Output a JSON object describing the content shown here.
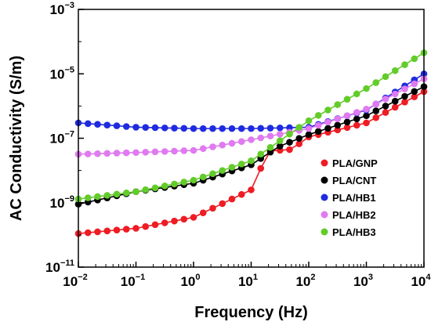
{
  "chart_data": {
    "type": "line",
    "xlabel": "Frequency (Hz)",
    "ylabel": "AC Conductivity (S/m)",
    "xscale": "log",
    "yscale": "log",
    "xlim": [
      0.01,
      10000
    ],
    "ylim": [
      1e-11,
      0.001
    ],
    "grid": false,
    "legend": "right",
    "x_ticks": [
      {
        "value": 0.01,
        "base": "10",
        "exp": "−2"
      },
      {
        "value": 0.1,
        "base": "10",
        "exp": "−1"
      },
      {
        "value": 1,
        "base": "10",
        "exp": "0"
      },
      {
        "value": 10,
        "base": "10",
        "exp": "1"
      },
      {
        "value": 100,
        "base": "10",
        "exp": "2"
      },
      {
        "value": 1000,
        "base": "10",
        "exp": "3"
      },
      {
        "value": 10000,
        "base": "10",
        "exp": "4"
      }
    ],
    "y_ticks": [
      {
        "value": 1e-11,
        "base": "10",
        "exp": "−11"
      },
      {
        "value": 1e-09,
        "base": "10",
        "exp": "−9"
      },
      {
        "value": 1e-07,
        "base": "10",
        "exp": "−7"
      },
      {
        "value": 1e-05,
        "base": "10",
        "exp": "−5"
      },
      {
        "value": 0.001,
        "base": "10",
        "exp": "−3"
      }
    ],
    "series": [
      {
        "name": "PLA/GNP",
        "color": "#ee1c24",
        "x": [
          0.01,
          0.1,
          1,
          10,
          20,
          50,
          100,
          1000,
          10000
        ],
        "y": [
          1.1e-10,
          1.6e-10,
          3.5e-10,
          2.5e-09,
          4e-08,
          4.5e-08,
          1.1e-07,
          3e-07,
          2.8e-06
        ]
      },
      {
        "name": "PLA/CNT",
        "color": "#000000",
        "x": [
          0.01,
          0.1,
          1,
          10,
          30,
          100,
          1000,
          10000
        ],
        "y": [
          9e-10,
          2.2e-09,
          4e-09,
          1.5e-08,
          5.5e-08,
          1.3e-07,
          5e-07,
          4e-06
        ]
      },
      {
        "name": "PLA/HB1",
        "color": "#1f2be0",
        "x": [
          0.01,
          0.1,
          1,
          10,
          100,
          1000,
          10000
        ],
        "y": [
          3e-07,
          2.2e-07,
          2e-07,
          2e-07,
          2.2e-07,
          7.5e-07,
          1e-05
        ]
      },
      {
        "name": "PLA/HB2",
        "color": "#e07af0",
        "x": [
          0.01,
          0.1,
          1,
          10,
          100,
          1000,
          10000
        ],
        "y": [
          3.2e-08,
          3.6e-08,
          4.2e-08,
          9e-08,
          2e-07,
          8e-07,
          7e-06
        ]
      },
      {
        "name": "PLA/HB3",
        "color": "#62cc2a",
        "x": [
          0.01,
          0.1,
          1,
          10,
          100,
          1000,
          10000
        ],
        "y": [
          1.3e-09,
          2.2e-09,
          5e-09,
          2e-08,
          3.5e-07,
          3.5e-06,
          4.5e-05
        ]
      }
    ]
  }
}
